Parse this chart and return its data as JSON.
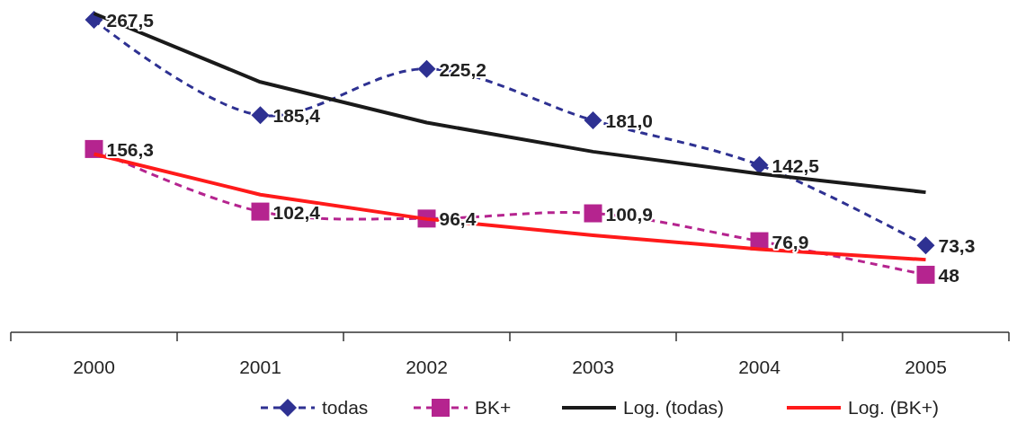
{
  "chart_data": {
    "type": "line",
    "categories": [
      "2000",
      "2001",
      "2002",
      "2003",
      "2004",
      "2005"
    ],
    "series": [
      {
        "name": "todas",
        "color": "#2e3192",
        "marker": "diamond",
        "line_style": "dashed",
        "values": [
          267.5,
          185.4,
          225.2,
          181.0,
          142.5,
          73.3
        ],
        "value_labels": [
          "267,5",
          "185,4",
          "225,2",
          "181,0",
          "142,5",
          "73,3"
        ]
      },
      {
        "name": "BK+",
        "color": "#b5248f",
        "marker": "square",
        "line_style": "dashed",
        "values": [
          156.3,
          102.4,
          96.4,
          100.9,
          76.9,
          48
        ],
        "value_labels": [
          "156,3",
          "102,4",
          "96,4",
          "100,9",
          "76,9",
          "48"
        ]
      },
      {
        "name": "Log. (todas)",
        "color": "#1a1a1a",
        "marker": "none",
        "line_style": "solid",
        "values": [
          273,
          214,
          179,
          154,
          135,
          119
        ]
      },
      {
        "name": "Log. (BK+)",
        "color": "#ff1a1a",
        "marker": "none",
        "line_style": "solid",
        "values": [
          152,
          117,
          96,
          82,
          70,
          61
        ]
      }
    ],
    "legend": "bottom"
  }
}
